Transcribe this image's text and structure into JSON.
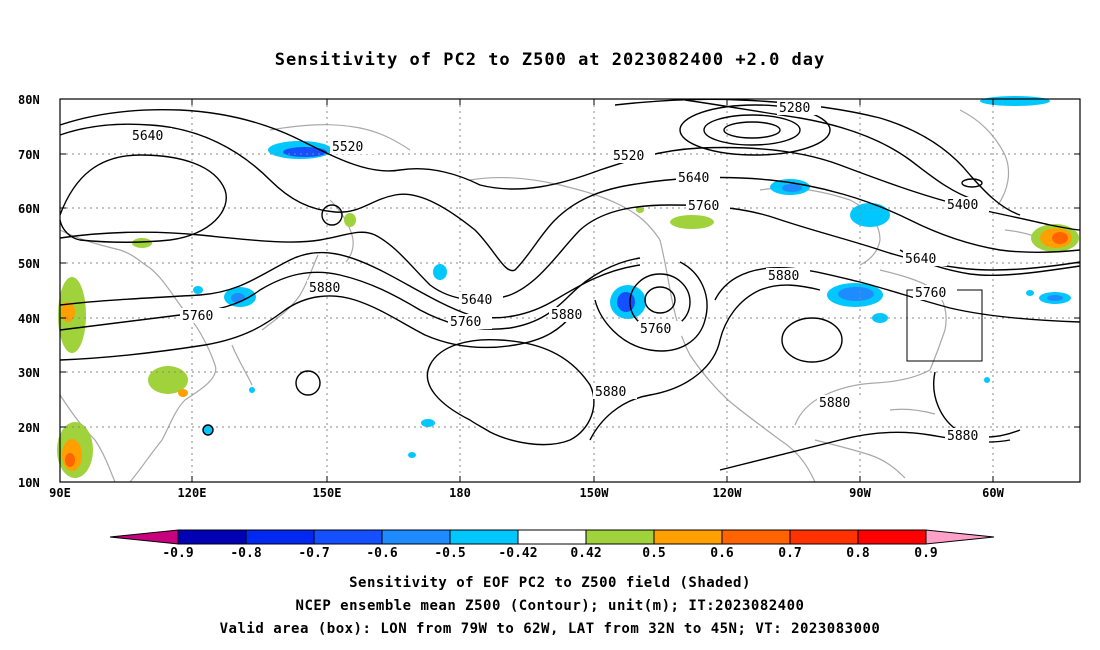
{
  "title": "Sensitivity of PC2 to Z500 at 2023082400 +2.0 day",
  "lat_labels": [
    "80N",
    "70N",
    "60N",
    "50N",
    "40N",
    "30N",
    "20N",
    "10N"
  ],
  "lon_labels": [
    "90E",
    "120E",
    "150E",
    "180",
    "150W",
    "120W",
    "90W",
    "60W"
  ],
  "contour_labels": [
    "5640",
    "5520",
    "5280",
    "5520",
    "5400",
    "5640",
    "5760",
    "5640",
    "5880",
    "5760",
    "5640",
    "5760",
    "5880",
    "5760",
    "5880",
    "5760",
    "5880",
    "5880",
    "5880"
  ],
  "colorbar": {
    "labels": [
      "-0.9",
      "-0.8",
      "-0.7",
      "-0.6",
      "-0.5",
      "-0.42",
      "0.42",
      "0.5",
      "0.6",
      "0.7",
      "0.8",
      "0.9"
    ],
    "colors": [
      "#c8007e",
      "#0000b4",
      "#0028f0",
      "#1450ff",
      "#1e8cff",
      "#00c8ff",
      "#ffffff",
      "#a0d23c",
      "#ffa000",
      "#ff6400",
      "#ff3200",
      "#ff0000",
      "#ffa0c8"
    ]
  },
  "captions": {
    "line1": "Sensitivity of EOF PC2 to Z500 field (Shaded)",
    "line2": "NCEP ensemble mean Z500 (Contour); unit(m); IT:2023082400",
    "line3": "Valid area (box): LON from 79W to 62W, LAT from 32N to 45N; VT: 2023083000"
  }
}
